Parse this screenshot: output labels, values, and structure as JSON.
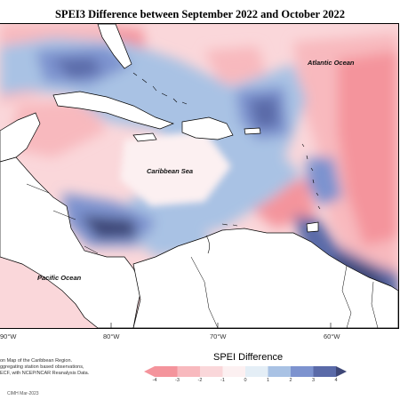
{
  "title": "SPEI3 Difference between September 2022 and October 2022",
  "labels": {
    "atlantic": "Atlantic Ocean",
    "caribbean": "Caribbean Sea",
    "pacific": "Pacific Ocean"
  },
  "longitude_ticks": [
    "90°W",
    "80°W",
    "70°W",
    "60°W"
  ],
  "footnote_lines": [
    "on Map of the Caribbean Region.",
    "ggregating station based observations,",
    "ECF, with NCEP/NCAR Reanalysis Data."
  ],
  "credit": "CIMH Mar-2023",
  "legend": {
    "title": "SPEI Difference",
    "ticks": [
      "-4",
      "-3",
      "-2",
      "-1",
      "0",
      "1",
      "2",
      "3",
      "4"
    ],
    "colors": [
      "#f4949c",
      "#f8b9be",
      "#fad7da",
      "#fcf0f1",
      "#e4eef6",
      "#a9c2e4",
      "#7d93cf",
      "#5a6aa8",
      "#3e4777"
    ]
  }
}
